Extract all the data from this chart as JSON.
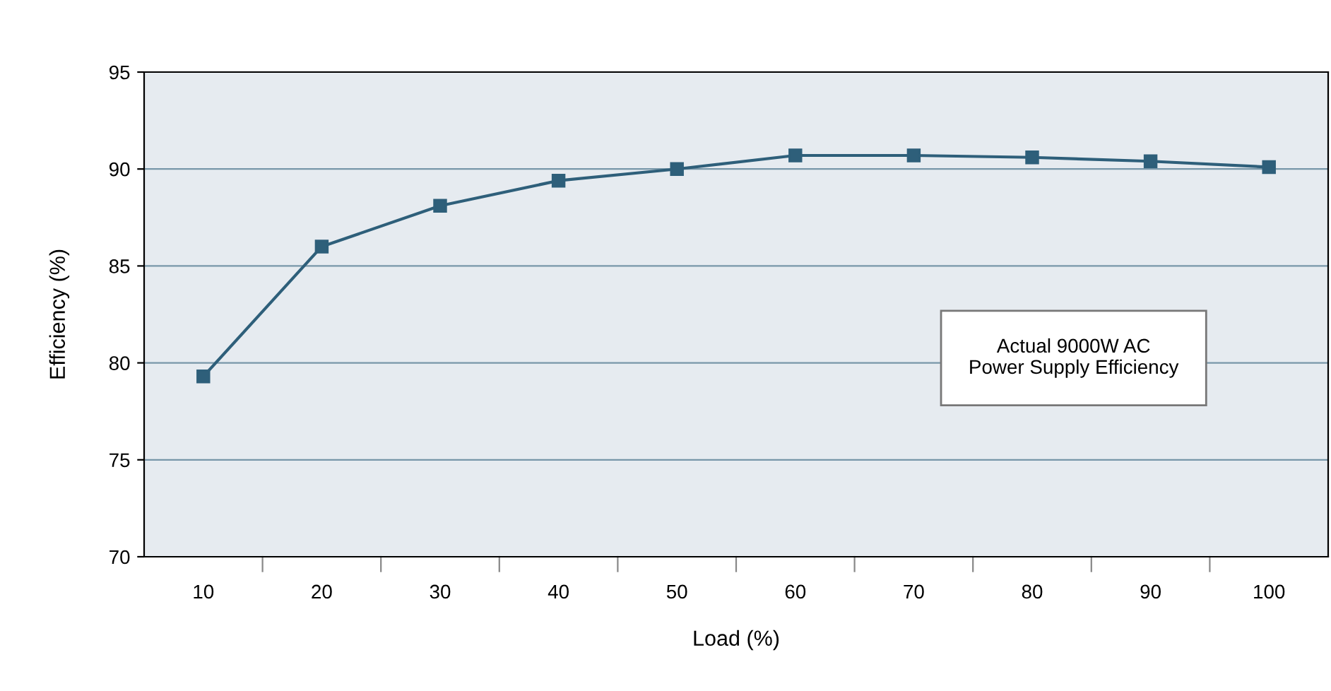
{
  "chart_data": {
    "type": "line",
    "xlabel": "Load (%)",
    "ylabel": "Efficiency (%)",
    "categories": [
      "10",
      "20",
      "30",
      "40",
      "50",
      "60",
      "70",
      "80",
      "90",
      "100"
    ],
    "series": [
      {
        "color": "#2e5f7a",
        "values": [
          79.3,
          86.0,
          88.1,
          89.4,
          90.0,
          90.7,
          90.7,
          90.6,
          90.4,
          90.1
        ]
      }
    ],
    "ylim": [
      70,
      95
    ],
    "yticks": [
      70,
      75,
      80,
      85,
      90,
      95
    ],
    "grid": "y",
    "marker": "square",
    "line_style": "solid",
    "annotations": [
      "Actual 9000W AC\nPower Supply Efficiency"
    ]
  }
}
